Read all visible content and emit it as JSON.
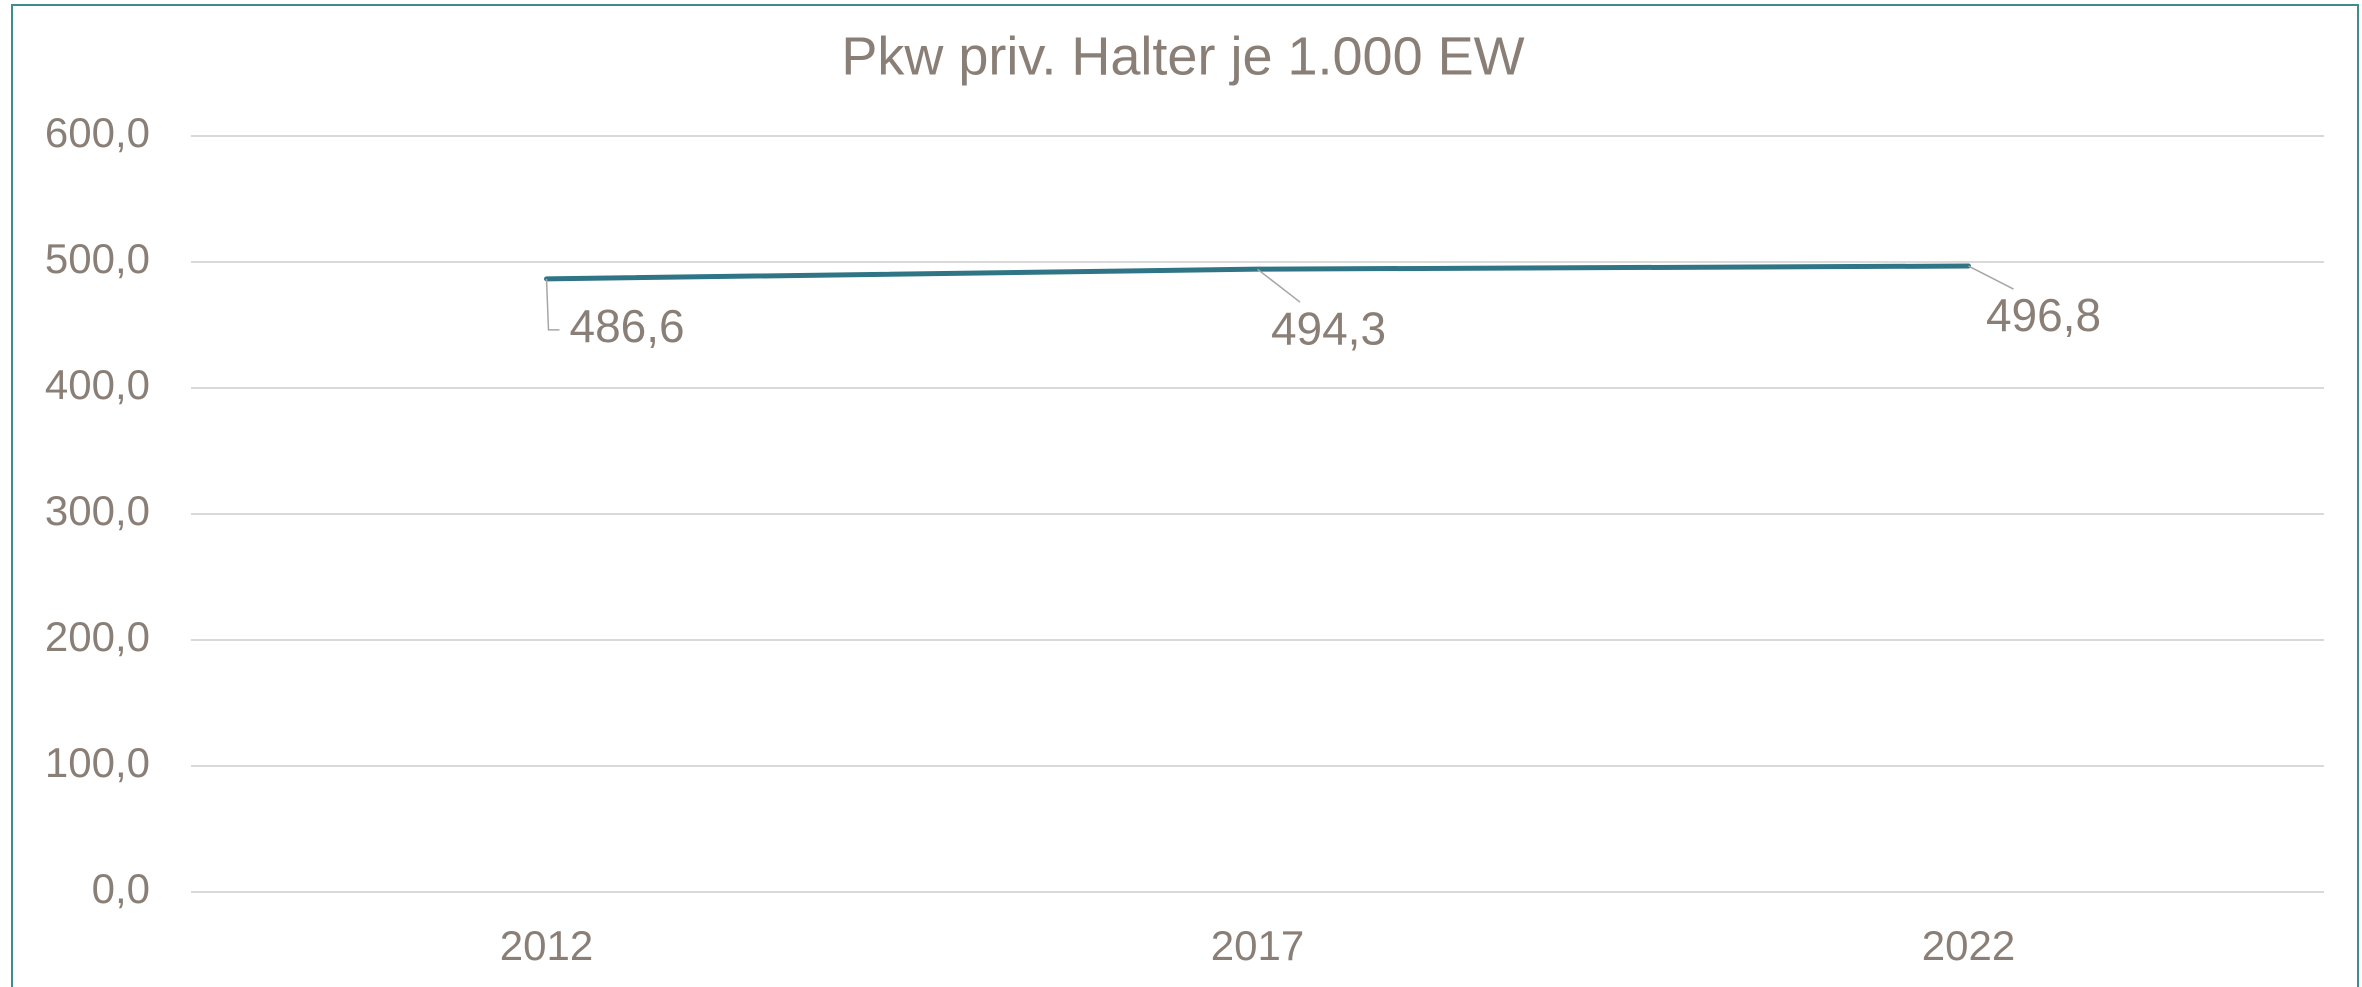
{
  "chart_data": {
    "type": "line",
    "title": "Pkw priv. Halter  je 1.000 EW",
    "categories": [
      "2012",
      "2017",
      "2022"
    ],
    "series": [
      {
        "name": "Pkw priv. Halter je 1.000 EW",
        "color": "#2f7585",
        "values": [
          486.6,
          494.3,
          496.8
        ],
        "value_labels": [
          "486,6",
          "494,3",
          "496,8"
        ]
      }
    ],
    "ylim": [
      0,
      600
    ],
    "yticks": [
      {
        "value": 0,
        "label": "0,0"
      },
      {
        "value": 100,
        "label": "100,0"
      },
      {
        "value": 200,
        "label": "200,0"
      },
      {
        "value": 300,
        "label": "300,0"
      },
      {
        "value": 400,
        "label": "400,0"
      },
      {
        "value": 500,
        "label": "500,0"
      },
      {
        "value": 600,
        "label": "600,0"
      }
    ],
    "grid": true
  }
}
